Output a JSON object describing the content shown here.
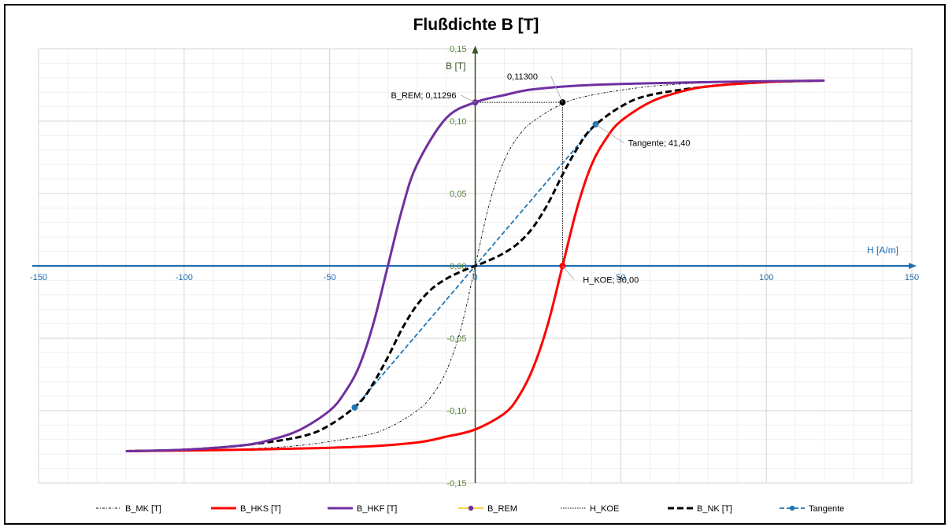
{
  "chart_data": {
    "type": "line",
    "title": "Flußdichte B [T]",
    "xlabel": "H [A/m]",
    "ylabel": "B [T]",
    "xlim": [
      -150,
      150
    ],
    "ylim": [
      -0.15,
      0.15
    ],
    "x_ticks": [
      -150,
      -100,
      -50,
      0,
      50,
      100,
      150
    ],
    "x_tick_labels": [
      "-150",
      "-100",
      "-50",
      "0",
      "50",
      "100",
      "150"
    ],
    "y_ticks": [
      -0.15,
      -0.1,
      -0.05,
      0,
      0.05,
      0.1,
      0.15
    ],
    "y_tick_labels": [
      "-0,15",
      "-0,10",
      "-0,05",
      "0,00",
      "0,05",
      "0,10",
      "0,15"
    ],
    "grid": true,
    "legend_position": "bottom",
    "colors": {
      "axis_x": "#1f6fb2",
      "axis_y": "#375623",
      "tick_x": "#1f6fb2",
      "tick_y": "#538135",
      "hks": "#ff0000",
      "hkf": "#7030a0",
      "nk": "#000000",
      "mk": "#000000",
      "tangent": "#1f77b4",
      "rem_legend": "#ffc000"
    },
    "series": [
      {
        "name": "B_MK [T]",
        "style": "dash-dot-thin",
        "x": [
          -120,
          -100,
          -80,
          -60,
          -40,
          -30,
          -20,
          -15,
          -10,
          -5,
          0,
          5,
          10,
          15,
          20,
          30,
          40,
          60,
          80,
          100,
          120
        ],
        "y": [
          -0.128,
          -0.1275,
          -0.1265,
          -0.124,
          -0.118,
          -0.112,
          -0.1,
          -0.09,
          -0.073,
          -0.044,
          0,
          0.044,
          0.073,
          0.09,
          0.1,
          0.112,
          0.118,
          0.124,
          0.1265,
          0.1275,
          0.128
        ]
      },
      {
        "name": "B_HKS [T]",
        "style": "solid-thick",
        "x": [
          -120,
          -80,
          -40,
          -20,
          -10,
          0,
          10,
          15,
          20,
          25,
          30,
          35,
          40,
          45,
          50,
          60,
          70,
          80,
          100,
          120
        ],
        "y": [
          -0.128,
          -0.127,
          -0.125,
          -0.122,
          -0.118,
          -0.113,
          -0.102,
          -0.09,
          -0.07,
          -0.04,
          0.0,
          0.04,
          0.07,
          0.088,
          0.1,
          0.113,
          0.12,
          0.124,
          0.127,
          0.128
        ]
      },
      {
        "name": "B_HKF  [T]",
        "style": "solid-thick",
        "x": [
          -120,
          -100,
          -80,
          -70,
          -60,
          -50,
          -45,
          -40,
          -35,
          -30,
          -25,
          -20,
          -10,
          0,
          10,
          20,
          40,
          80,
          120
        ],
        "y": [
          -0.128,
          -0.127,
          -0.124,
          -0.12,
          -0.113,
          -0.1,
          -0.088,
          -0.07,
          -0.04,
          0.0,
          0.04,
          0.07,
          0.102,
          0.113,
          0.118,
          0.122,
          0.125,
          0.127,
          0.128
        ]
      },
      {
        "name": "B_REM",
        "style": "marker",
        "x": [
          0
        ],
        "y": [
          0.11296
        ]
      },
      {
        "name": "H_KOE",
        "style": "dotted-thin",
        "x": [
          0,
          30,
          30
        ],
        "y": [
          0.113,
          0.113,
          0.0
        ]
      },
      {
        "name": "B_NK [T]",
        "style": "dashed-thick",
        "x": [
          -120,
          -100,
          -80,
          -60,
          -50,
          -40,
          -35,
          -30,
          -25,
          -20,
          -15,
          -10,
          -5,
          0,
          5,
          10,
          15,
          20,
          25,
          30,
          35,
          40,
          50,
          60,
          80,
          100,
          120
        ],
        "y": [
          -0.128,
          -0.127,
          -0.124,
          -0.118,
          -0.11,
          -0.095,
          -0.081,
          -0.063,
          -0.043,
          -0.027,
          -0.016,
          -0.009,
          -0.004,
          0.0,
          0.004,
          0.009,
          0.016,
          0.027,
          0.043,
          0.063,
          0.081,
          0.095,
          0.11,
          0.118,
          0.124,
          0.127,
          0.128
        ]
      },
      {
        "name": "Tangente",
        "style": "dashed-marker",
        "x": [
          -41.4,
          0,
          41.4
        ],
        "y": [
          -0.0978,
          0,
          0.0978
        ]
      }
    ],
    "markers": [
      {
        "series": "B_REM",
        "x": 0,
        "y": 0.11296,
        "color": "#7030a0"
      },
      {
        "series": "H_KOE",
        "x": 30,
        "y": 0.113,
        "color": "#000000"
      },
      {
        "series": "B_HKS",
        "x": 30,
        "y": 0.0,
        "color": "#ff0000"
      },
      {
        "series": "Tangente",
        "x": 41.4,
        "y": 0.0978,
        "color": "#1f77b4"
      },
      {
        "series": "Tangente",
        "x": -41.4,
        "y": -0.0978,
        "color": "#1f77b4"
      }
    ],
    "annotations": [
      {
        "id": "ann-rem",
        "text": "B_REM; 0,11296",
        "x": 0,
        "y": 0.11296
      },
      {
        "id": "ann-113",
        "text": "0,11300",
        "x": 30,
        "y": 0.113
      },
      {
        "id": "ann-tan",
        "text": "Tangente; 41,40",
        "x": 41.4,
        "y": 0.0978
      },
      {
        "id": "ann-koe",
        "text": "H_KOE; 30,00",
        "x": 30,
        "y": 0.0
      }
    ],
    "legend": [
      "B_MK [T]",
      "B_HKS [T]",
      "B_HKF  [T]",
      "B_REM",
      "H_KOE",
      "B_NK [T]",
      "Tangente"
    ]
  }
}
